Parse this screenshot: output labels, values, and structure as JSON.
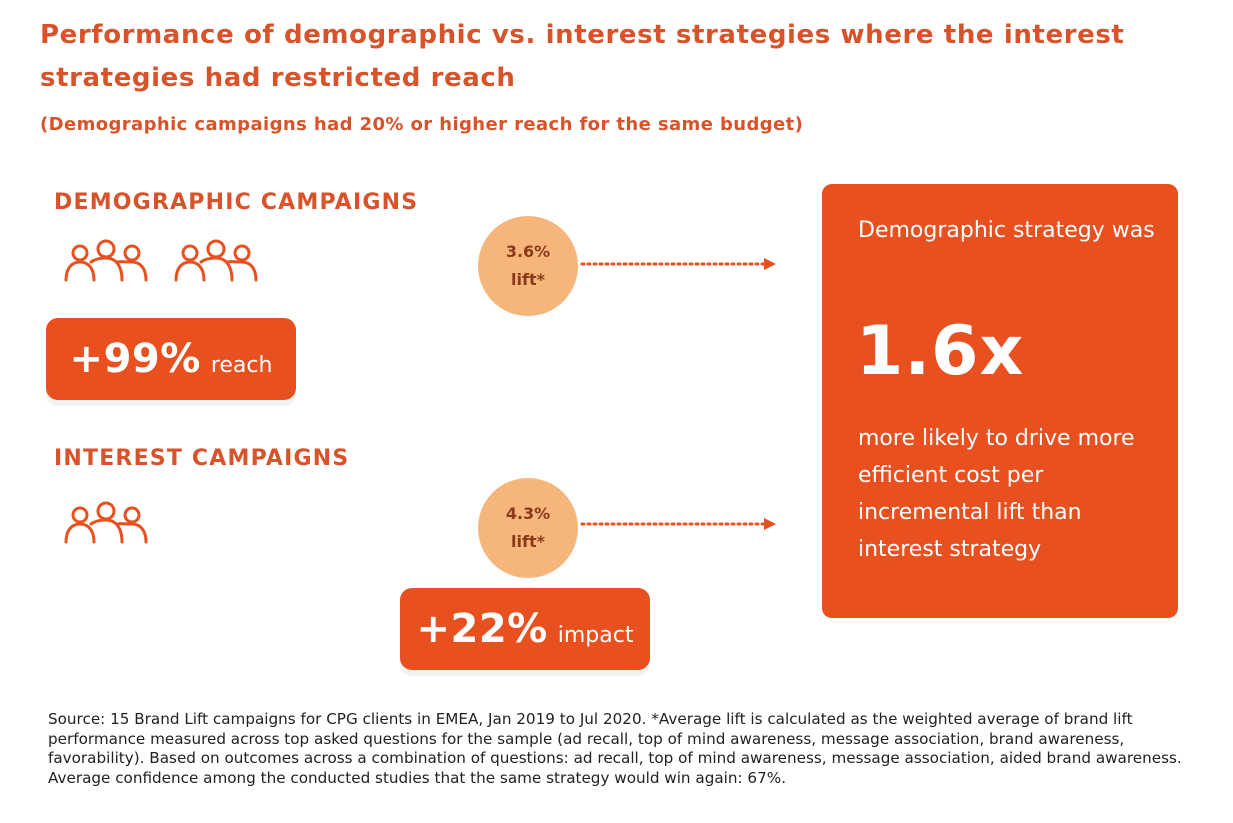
{
  "header": {
    "title": "Performance of demographic vs. interest strategies where the interest strategies had restricted reach",
    "subtitle": "(Demographic campaigns had 20% or higher reach for the same budget)"
  },
  "demographic": {
    "heading": "DEMOGRAPHIC CAMPAIGNS",
    "people_icon": "people-group-icon",
    "metric_value": "+99%",
    "metric_label": "reach",
    "lift_value": "3.6%",
    "lift_label": "lift*"
  },
  "interest": {
    "heading": "INTEREST CAMPAIGNS",
    "people_icon": "people-group-icon",
    "metric_value": "+22%",
    "metric_label": "impact",
    "lift_value": "4.3%",
    "lift_label": "lift*"
  },
  "result_panel": {
    "lead": "Demographic strategy was",
    "ratio": "1.6x",
    "tail": "more likely to drive more efficient cost per incremental lift than interest strategy"
  },
  "footnote": "Source: 15 Brand Lift campaigns for CPG clients in EMEA, Jan 2019 to Jul 2020. *Average lift is calculated as the weighted average of brand lift performance measured across top asked questions for the sample (ad recall, top of mind awareness, message association, brand awareness, favorability).  Based on outcomes across a combination of questions: ad recall, top of mind awareness, message association, aided brand awareness. Average confidence among the conducted studies that the same strategy would win again: 67%.",
  "colors": {
    "accent": "#e8501f",
    "heading": "#d9532a",
    "bubble": "#f6b57a"
  }
}
